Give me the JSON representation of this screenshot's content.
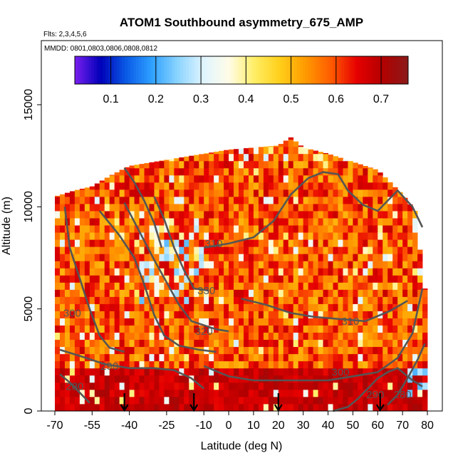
{
  "chart_data": {
    "type": "heatmap",
    "title": "ATOM1 Southbound asymmetry_675_AMP",
    "subtitle_flights": "Flts: 2,3,4,5,6",
    "subtitle_dates": "MMDD: 0801,0803,0806,0808,0812",
    "xlabel": "Latitude (deg N)",
    "ylabel": "Altitude (m)",
    "xlim": [
      -70,
      82
    ],
    "ylim": [
      0,
      17500
    ],
    "x_ticks": [
      -70,
      -55,
      -40,
      -25,
      -10,
      0,
      10,
      20,
      30,
      40,
      50,
      60,
      70,
      80
    ],
    "x_tick_labels": [
      "-70",
      "-55",
      "-40",
      "-25",
      "-10",
      "0",
      "10",
      "20",
      "30",
      "40",
      "50",
      "60",
      "70",
      "80"
    ],
    "y_ticks": [
      0,
      5000,
      10000,
      15000
    ],
    "y_tick_labels": [
      "0",
      "5000",
      "10000",
      "15000"
    ],
    "colorbar": {
      "range": [
        0.02,
        0.76
      ],
      "ticks": [
        0.1,
        0.2,
        0.3,
        0.4,
        0.5,
        0.6,
        0.7
      ],
      "tick_labels": [
        "0.1",
        "0.2",
        "0.3",
        "0.4",
        "0.5",
        "0.6",
        "0.7"
      ],
      "colors": [
        "#7a1ff0",
        "#0000b8",
        "#0a5ae6",
        "#2ea0ff",
        "#8ad4ff",
        "#dff4ff",
        "#fffce8",
        "#ffee66",
        "#ffcf1a",
        "#ff9a00",
        "#ff5a00",
        "#e60000",
        "#b30000",
        "#8a1a1a"
      ]
    },
    "data_extent": {
      "lat_range": [
        -70,
        79
      ],
      "alt_top_by_lat": [
        [
          -70,
          10500
        ],
        [
          -62,
          10800
        ],
        [
          -55,
          11000
        ],
        [
          -48,
          11500
        ],
        [
          -40,
          12000
        ],
        [
          -30,
          12200
        ],
        [
          -20,
          12400
        ],
        [
          -10,
          12600
        ],
        [
          0,
          12800
        ],
        [
          10,
          12900
        ],
        [
          20,
          13000
        ],
        [
          25,
          13400
        ],
        [
          30,
          12900
        ],
        [
          40,
          12600
        ],
        [
          50,
          12200
        ],
        [
          60,
          11800
        ],
        [
          65,
          11200
        ],
        [
          70,
          10600
        ],
        [
          75,
          9800
        ],
        [
          79,
          6000
        ]
      ]
    },
    "theta_contours": [
      {
        "label": "280",
        "points": [
          [
            -68,
            1800
          ],
          [
            -64,
            1400
          ],
          [
            -60,
            900
          ],
          [
            -56,
            400
          ]
        ]
      },
      {
        "label": "280",
        "points": [
          [
            64,
            300
          ],
          [
            68,
            800
          ],
          [
            72,
            1600
          ],
          [
            76,
            2500
          ],
          [
            79,
            3300
          ]
        ]
      },
      {
        "label": "290",
        "points": [
          [
            -68,
            3000
          ],
          [
            -60,
            2700
          ],
          [
            -50,
            2300
          ],
          [
            -40,
            2100
          ],
          [
            -30,
            2100
          ],
          [
            -22,
            2000
          ],
          [
            -15,
            1600
          ],
          [
            -10,
            1100
          ]
        ]
      },
      {
        "label": "290",
        "points": [
          [
            42,
            0
          ],
          [
            48,
            200
          ],
          [
            52,
            600
          ],
          [
            56,
            1100
          ],
          [
            60,
            1600
          ],
          [
            64,
            1900
          ],
          [
            68,
            2100
          ],
          [
            74,
            1500
          ],
          [
            78,
            1200
          ]
        ]
      },
      {
        "label": "300",
        "points": [
          [
            -66,
            10000
          ],
          [
            -64,
            8000
          ],
          [
            -60,
            6500
          ],
          [
            -56,
            5000
          ],
          [
            -52,
            3700
          ],
          [
            -48,
            3100
          ],
          [
            -42,
            2900
          ]
        ]
      },
      {
        "label": "300",
        "points": [
          [
            -10,
            2200
          ],
          [
            0,
            1700
          ],
          [
            10,
            1500
          ],
          [
            20,
            1500
          ],
          [
            30,
            1500
          ],
          [
            40,
            1500
          ],
          [
            50,
            1700
          ],
          [
            60,
            1900
          ],
          [
            68,
            2600
          ],
          [
            74,
            3800
          ],
          [
            78,
            6000
          ]
        ]
      },
      {
        "label": "310",
        "points": [
          [
            -52,
            9800
          ],
          [
            -44,
            8600
          ],
          [
            -38,
            7500
          ],
          [
            -34,
            6200
          ],
          [
            -30,
            4700
          ],
          [
            -26,
            3700
          ],
          [
            -20,
            3200
          ],
          [
            -12,
            3000
          ],
          [
            -5,
            2900
          ]
        ]
      },
      {
        "label": "310",
        "points": [
          [
            5,
            5500
          ],
          [
            15,
            5200
          ],
          [
            25,
            4800
          ],
          [
            35,
            4600
          ],
          [
            45,
            4500
          ],
          [
            55,
            4400
          ],
          [
            65,
            4900
          ],
          [
            72,
            5400
          ]
        ]
      },
      {
        "label": "320",
        "points": [
          [
            -42,
            10200
          ],
          [
            -36,
            8800
          ],
          [
            -30,
            7400
          ],
          [
            -25,
            6300
          ],
          [
            -20,
            5200
          ],
          [
            -15,
            4400
          ],
          [
            -5,
            4000
          ],
          [
            0,
            3900
          ]
        ]
      },
      {
        "label": "330",
        "points": [
          [
            -30,
            10500
          ],
          [
            -26,
            9400
          ],
          [
            -22,
            8000
          ],
          [
            -18,
            6900
          ],
          [
            -14,
            6000
          ],
          [
            -8,
            5900
          ]
        ]
      },
      {
        "label": "310",
        "points": [
          [
            -10,
            8000
          ],
          [
            0,
            8200
          ],
          [
            10,
            8500
          ],
          [
            18,
            9300
          ],
          [
            25,
            10600
          ],
          [
            32,
            11400
          ],
          [
            38,
            11700
          ],
          [
            44,
            11600
          ],
          [
            48,
            10800
          ],
          [
            54,
            10100
          ],
          [
            60,
            9800
          ],
          [
            68,
            10800
          ],
          [
            74,
            10000
          ],
          [
            78,
            9000
          ]
        ]
      },
      {
        "label": "",
        "points": [
          [
            -42,
            11900
          ],
          [
            -38,
            11200
          ],
          [
            -34,
            10300
          ],
          [
            -30,
            9200
          ],
          [
            -27,
            8000
          ]
        ]
      }
    ],
    "contour_labels": [
      {
        "text": "310",
        "lat": -6,
        "alt": 8200
      },
      {
        "text": "330",
        "lat": -9,
        "alt": 5900
      },
      {
        "text": "320",
        "lat": -10,
        "alt": 3900
      },
      {
        "text": "300",
        "lat": -63,
        "alt": 4800
      },
      {
        "text": "290",
        "lat": -48,
        "alt": 2200
      },
      {
        "text": "280",
        "lat": -62,
        "alt": 1200
      },
      {
        "text": "310",
        "lat": 49,
        "alt": 4400
      },
      {
        "text": "300",
        "lat": 45,
        "alt": 1900
      },
      {
        "text": "290",
        "lat": 59,
        "alt": 800
      },
      {
        "text": "280",
        "lat": 70,
        "alt": 800
      }
    ],
    "markers": [
      {
        "type": "arrow-down",
        "lat": -42
      },
      {
        "type": "arrow-down",
        "lat": -14
      },
      {
        "type": "arrow-down",
        "lat": 20
      },
      {
        "type": "arrow-down",
        "lat": 61
      }
    ]
  }
}
